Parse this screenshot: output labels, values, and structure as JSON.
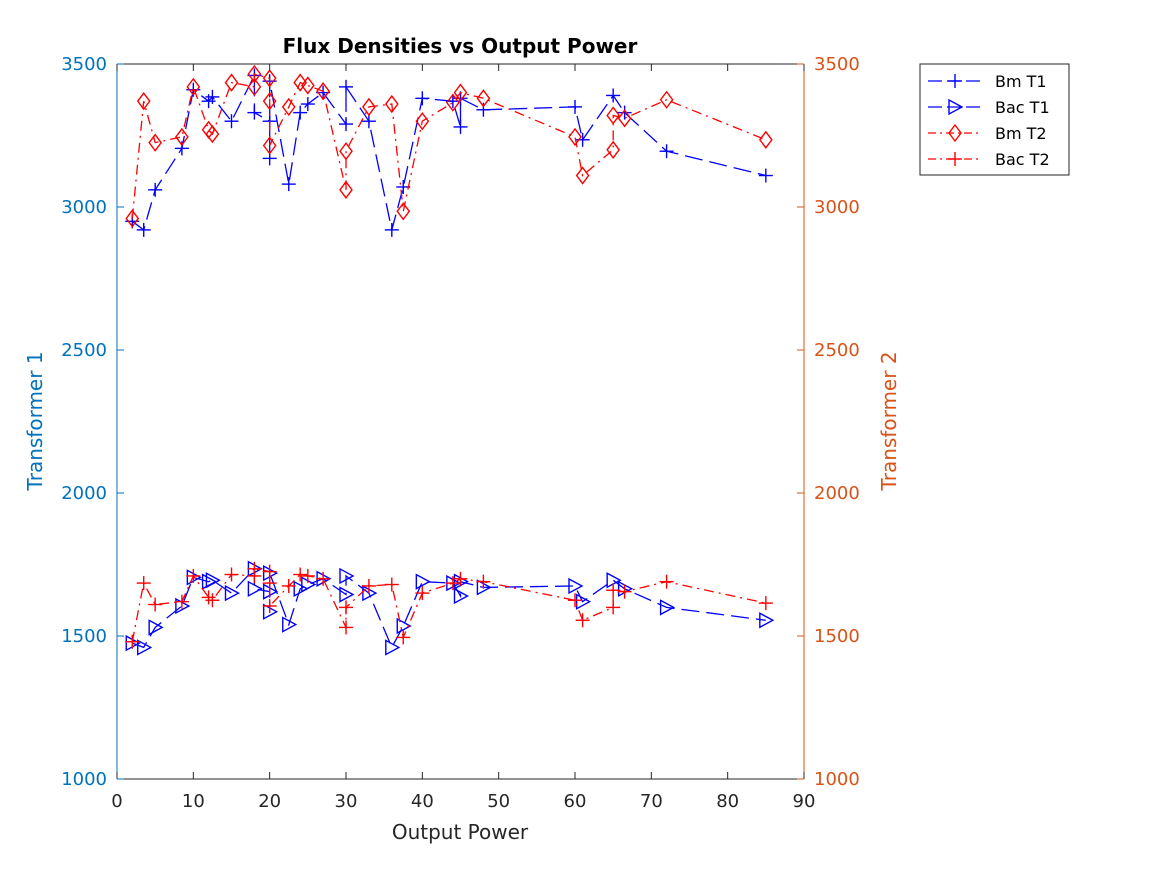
{
  "chart_data": {
    "type": "line",
    "title": "Flux Densities vs Output Power",
    "xlabel": "Output Power",
    "ylabel_left": "Transformer 1",
    "ylabel_right": "Transformer 2",
    "xlim": [
      0,
      90
    ],
    "ylim_left": [
      1000,
      3500
    ],
    "ylim_right": [
      1000,
      3500
    ],
    "xticks": [
      0,
      10,
      20,
      30,
      40,
      50,
      60,
      70,
      80,
      90
    ],
    "yticks_left": [
      1000,
      1500,
      2000,
      2500,
      3000,
      3500
    ],
    "yticks_right": [
      1000,
      1500,
      2000,
      2500,
      3000,
      3500
    ],
    "grid": false,
    "legend_position": "outside-top-right",
    "colors": {
      "left_axis": "#0072BD",
      "right_axis": "#D95319",
      "t1": "#0000FF",
      "t2": "#FF0000",
      "axis_dark": "#262626"
    },
    "series": [
      {
        "name": "Bm T1",
        "axis": "left",
        "color": "#0000FF",
        "line": "dash",
        "marker": "plus",
        "points": [
          [
            2,
            2950
          ],
          [
            3.5,
            2920
          ],
          [
            5,
            3060
          ],
          [
            8.5,
            3205
          ],
          [
            10,
            3410
          ],
          [
            12,
            3370
          ],
          [
            12.5,
            3385
          ],
          [
            15,
            3300
          ],
          [
            18,
            3460
          ],
          [
            18,
            3330
          ],
          [
            20,
            3300
          ],
          [
            20,
            3170
          ],
          [
            20,
            3440
          ],
          [
            22.5,
            3080
          ],
          [
            24,
            3330
          ],
          [
            25,
            3360
          ],
          [
            27,
            3400
          ],
          [
            30,
            3290
          ],
          [
            30,
            3420
          ],
          [
            33,
            3300
          ],
          [
            36,
            2920
          ],
          [
            37.5,
            3070
          ],
          [
            40,
            3380
          ],
          [
            44,
            3370
          ],
          [
            45,
            3280
          ],
          [
            45,
            3380
          ],
          [
            48,
            3340
          ],
          [
            60,
            3350
          ],
          [
            61,
            3235
          ],
          [
            65,
            3390
          ],
          [
            66.5,
            3330
          ],
          [
            72,
            3195
          ],
          [
            85,
            3110
          ]
        ]
      },
      {
        "name": "Bac T1",
        "axis": "left",
        "color": "#0000FF",
        "line": "dash",
        "marker": "triangle-right",
        "points": [
          [
            2,
            1475
          ],
          [
            3.5,
            1460
          ],
          [
            5,
            1530
          ],
          [
            8.5,
            1605
          ],
          [
            10,
            1705
          ],
          [
            12,
            1690
          ],
          [
            12.5,
            1695
          ],
          [
            15,
            1650
          ],
          [
            18,
            1735
          ],
          [
            18,
            1665
          ],
          [
            20,
            1655
          ],
          [
            20,
            1585
          ],
          [
            20,
            1720
          ],
          [
            22.5,
            1540
          ],
          [
            24,
            1665
          ],
          [
            25,
            1680
          ],
          [
            27,
            1700
          ],
          [
            30,
            1645
          ],
          [
            30,
            1710
          ],
          [
            33,
            1650
          ],
          [
            36,
            1460
          ],
          [
            37.5,
            1535
          ],
          [
            40,
            1690
          ],
          [
            44,
            1685
          ],
          [
            45,
            1640
          ],
          [
            45,
            1690
          ],
          [
            48,
            1670
          ],
          [
            60,
            1675
          ],
          [
            61,
            1620
          ],
          [
            65,
            1695
          ],
          [
            66.5,
            1665
          ],
          [
            72,
            1600
          ],
          [
            85,
            1555
          ]
        ]
      },
      {
        "name": "Bm T2",
        "axis": "right",
        "color": "#FF0000",
        "line": "dashdot",
        "marker": "diamond",
        "points": [
          [
            2,
            2960
          ],
          [
            3.5,
            3370
          ],
          [
            5,
            3225
          ],
          [
            8.5,
            3245
          ],
          [
            10,
            3420
          ],
          [
            12,
            3270
          ],
          [
            12.5,
            3255
          ],
          [
            15,
            3435
          ],
          [
            18,
            3420
          ],
          [
            18,
            3465
          ],
          [
            20,
            3450
          ],
          [
            20,
            3370
          ],
          [
            20,
            3215
          ],
          [
            22.5,
            3350
          ],
          [
            24,
            3435
          ],
          [
            25,
            3425
          ],
          [
            27,
            3405
          ],
          [
            30,
            3060
          ],
          [
            30,
            3195
          ],
          [
            33,
            3350
          ],
          [
            36,
            3360
          ],
          [
            37.5,
            2985
          ],
          [
            40,
            3300
          ],
          [
            44,
            3365
          ],
          [
            45,
            3400
          ],
          [
            48,
            3380
          ],
          [
            60,
            3245
          ],
          [
            61,
            3110
          ],
          [
            65,
            3200
          ],
          [
            65,
            3320
          ],
          [
            66.5,
            3310
          ],
          [
            72,
            3375
          ],
          [
            85,
            3235
          ]
        ]
      },
      {
        "name": "Bac T2",
        "axis": "right",
        "color": "#FF0000",
        "line": "dashdot",
        "marker": "plus",
        "points": [
          [
            2,
            1480
          ],
          [
            3.5,
            1685
          ],
          [
            5,
            1610
          ],
          [
            8.5,
            1620
          ],
          [
            10,
            1710
          ],
          [
            12,
            1635
          ],
          [
            12.5,
            1625
          ],
          [
            15,
            1715
          ],
          [
            18,
            1710
          ],
          [
            18,
            1735
          ],
          [
            20,
            1725
          ],
          [
            20,
            1685
          ],
          [
            20,
            1605
          ],
          [
            22.5,
            1675
          ],
          [
            24,
            1715
          ],
          [
            25,
            1710
          ],
          [
            27,
            1700
          ],
          [
            30,
            1530
          ],
          [
            30,
            1600
          ],
          [
            33,
            1675
          ],
          [
            36,
            1680
          ],
          [
            37.5,
            1495
          ],
          [
            40,
            1650
          ],
          [
            44,
            1685
          ],
          [
            45,
            1700
          ],
          [
            48,
            1690
          ],
          [
            60,
            1625
          ],
          [
            61,
            1555
          ],
          [
            65,
            1600
          ],
          [
            65,
            1660
          ],
          [
            66.5,
            1655
          ],
          [
            72,
            1690
          ],
          [
            85,
            1615
          ]
        ]
      }
    ]
  }
}
